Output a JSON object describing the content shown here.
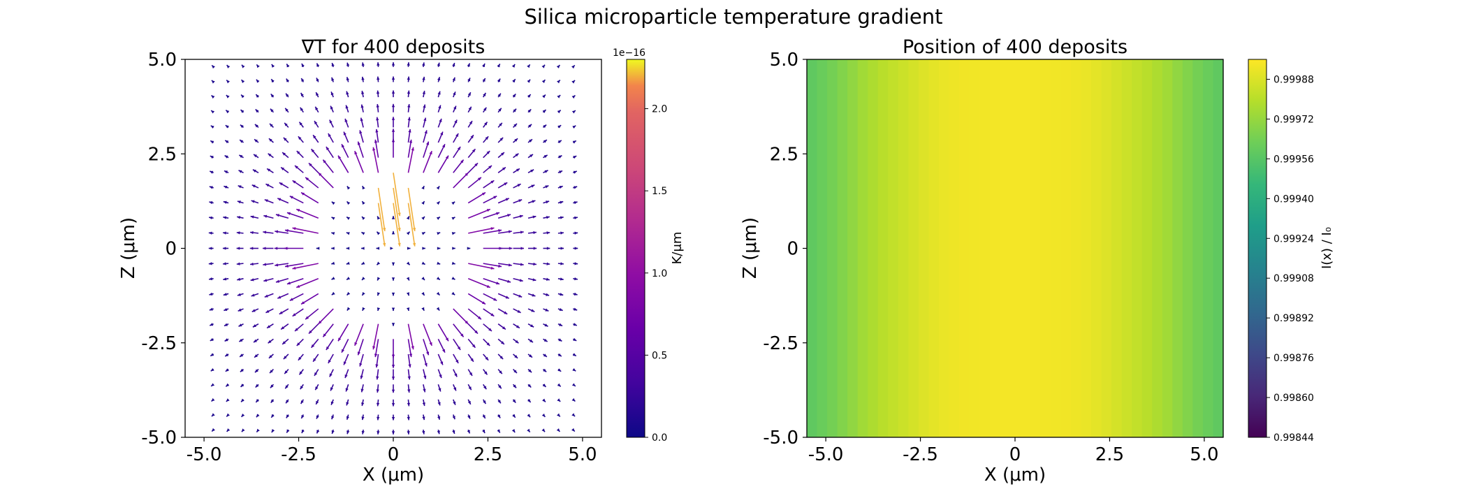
{
  "figure": {
    "suptitle": "Silica microparticle temperature gradient"
  },
  "chart_data": [
    {
      "type": "quiver",
      "title": "∇T for 400 deposits",
      "xlabel": "X (μm)",
      "ylabel": "Z (μm)",
      "xlim": [
        -5.5,
        5.5
      ],
      "ylim": [
        -5.0,
        5.0
      ],
      "x_ticks": [
        "-5.0",
        "-2.5",
        "0",
        "2.5",
        "5.0"
      ],
      "x_tick_values": [
        -5.0,
        -2.5,
        0,
        2.5,
        5.0
      ],
      "y_ticks": [
        "-5.0",
        "-2.5",
        "0",
        "2.5",
        "5.0"
      ],
      "y_tick_values": [
        -5.0,
        -2.5,
        0,
        2.5,
        5.0
      ],
      "field": {
        "grid_x": [
          -4.75,
          4.75,
          25
        ],
        "grid_z": [
          -4.8,
          4.8,
          25
        ],
        "particle_center": [
          0,
          0
        ],
        "particle_radius_um": 2.0,
        "direction": "radially outward from particle",
        "max_magnitude": 2.3e-16,
        "hotspot": [
          0.0,
          1.5
        ]
      },
      "colorbar": {
        "label": "K/μm",
        "colormap": "plasma",
        "min": 0.0,
        "max": 2.3e-16,
        "offset_label": "1e−16",
        "ticks": [
          "0.0",
          "0.5",
          "1.0",
          "1.5",
          "2.0"
        ],
        "tick_values": [
          0.0,
          0.5,
          1.0,
          1.5,
          2.0
        ]
      },
      "grid": false
    },
    {
      "type": "heatmap",
      "title": "Position of 400 deposits",
      "xlabel": "X (μm)",
      "ylabel": "Z (μm)",
      "xlim": [
        -5.5,
        5.5
      ],
      "ylim": [
        -5.0,
        5.0
      ],
      "x_ticks": [
        "-5.0",
        "-2.5",
        "0",
        "2.5",
        "5.0"
      ],
      "x_tick_values": [
        -5.0,
        -2.5,
        0,
        2.5,
        5.0
      ],
      "y_ticks": [
        "-5.0",
        "-2.5",
        "0",
        "2.5",
        "5.0"
      ],
      "y_tick_values": [
        -5.0,
        -2.5,
        0,
        2.5,
        5.0
      ],
      "x_profile": [
        {
          "x": -5.5,
          "value": 0.99957
        },
        {
          "x": -5.0,
          "value": 0.99962
        },
        {
          "x": -4.5,
          "value": 0.99968
        },
        {
          "x": -4.0,
          "value": 0.99975
        },
        {
          "x": -3.5,
          "value": 0.9998
        },
        {
          "x": -3.0,
          "value": 0.99984
        },
        {
          "x": -2.5,
          "value": 0.99988
        },
        {
          "x": -2.0,
          "value": 0.99991
        },
        {
          "x": -1.5,
          "value": 0.99993
        },
        {
          "x": 0.0,
          "value": 0.99994
        },
        {
          "x": 1.5,
          "value": 0.99993
        },
        {
          "x": 2.0,
          "value": 0.99991
        },
        {
          "x": 2.5,
          "value": 0.99988
        },
        {
          "x": 3.0,
          "value": 0.99984
        },
        {
          "x": 3.5,
          "value": 0.9998
        },
        {
          "x": 4.0,
          "value": 0.99975
        },
        {
          "x": 4.5,
          "value": 0.99968
        },
        {
          "x": 5.0,
          "value": 0.99962
        },
        {
          "x": 5.5,
          "value": 0.99957
        }
      ],
      "colorbar": {
        "label": "I(x) / I₀",
        "colormap": "viridis",
        "min": 0.99844,
        "max": 0.99996,
        "ticks": [
          "0.99844",
          "0.99860",
          "0.99876",
          "0.99892",
          "0.99908",
          "0.99924",
          "0.99940",
          "0.99956",
          "0.99972",
          "0.99988"
        ],
        "tick_values": [
          0.99844,
          0.9986,
          0.99876,
          0.99892,
          0.99908,
          0.99924,
          0.9994,
          0.99956,
          0.99972,
          0.99988
        ]
      },
      "grid": false
    }
  ]
}
